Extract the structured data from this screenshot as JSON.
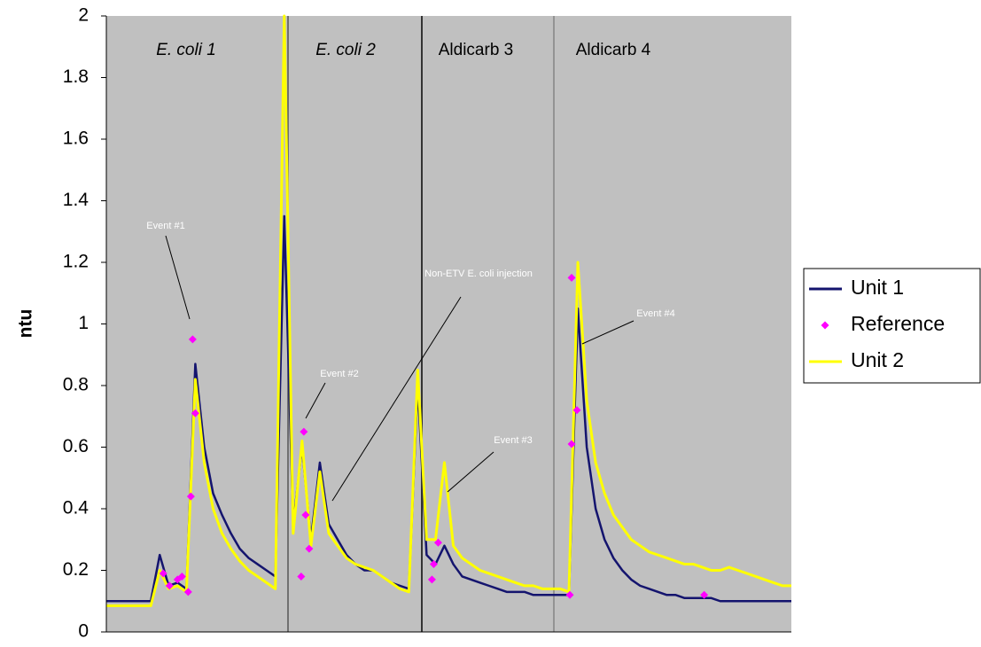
{
  "chart_data": {
    "type": "line",
    "y_label": "ntu",
    "xlim": [
      0,
      77
    ],
    "ylim": [
      0,
      2
    ],
    "yticks": [
      0,
      0.2,
      0.4,
      0.6,
      0.8,
      1,
      1.2,
      1.4,
      1.6,
      1.8,
      2
    ],
    "sections": [
      "E. coli 1",
      "E. coli 2",
      "Aldicarb 3",
      "Aldicarb 4"
    ],
    "annotations": [
      "Event #1",
      "Event #2",
      "Non-ETV E. coli injection",
      "Event #3",
      "Event #4"
    ],
    "series": [
      {
        "name": "Unit 1",
        "type": "line",
        "color": "#14146e",
        "values": [
          0.1,
          0.1,
          0.1,
          0.1,
          0.1,
          0.1,
          0.25,
          0.15,
          0.16,
          0.14,
          0.87,
          0.6,
          0.45,
          0.38,
          0.32,
          0.27,
          0.24,
          0.22,
          0.2,
          0.18,
          1.35,
          0.35,
          0.6,
          0.3,
          0.55,
          0.35,
          0.3,
          0.25,
          0.22,
          0.2,
          0.2,
          0.18,
          0.16,
          0.15,
          0.14,
          0.8,
          0.25,
          0.22,
          0.28,
          0.22,
          0.18,
          0.17,
          0.16,
          0.15,
          0.14,
          0.13,
          0.13,
          0.13,
          0.12,
          0.12,
          0.12,
          0.12,
          0.12,
          1.05,
          0.6,
          0.4,
          0.3,
          0.24,
          0.2,
          0.17,
          0.15,
          0.14,
          0.13,
          0.12,
          0.12,
          0.11,
          0.11,
          0.11,
          0.11,
          0.1,
          0.1,
          0.1,
          0.1,
          0.1,
          0.1,
          0.1,
          0.1,
          0.1
        ]
      },
      {
        "name": "Reference",
        "type": "scatter",
        "color": "#ff00ff",
        "x": [
          6.4,
          7.1,
          8.0,
          8.5,
          9.2,
          9.5,
          9.7,
          10.0,
          21.9,
          22.2,
          22.4,
          22.8,
          36.6,
          36.8,
          37.3,
          52.3,
          52.3,
          52.9,
          52.1,
          67.2
        ],
        "values": [
          0.19,
          0.15,
          0.17,
          0.18,
          0.13,
          0.44,
          0.95,
          0.71,
          0.18,
          0.65,
          0.38,
          0.27,
          0.17,
          0.22,
          0.29,
          1.15,
          0.61,
          0.72,
          0.12,
          0.12
        ]
      },
      {
        "name": "Unit 2",
        "type": "line",
        "color": "#ffff00",
        "values": [
          0.085,
          0.085,
          0.085,
          0.085,
          0.085,
          0.085,
          0.2,
          0.14,
          0.15,
          0.13,
          0.82,
          0.55,
          0.4,
          0.32,
          0.27,
          0.23,
          0.2,
          0.18,
          0.16,
          0.14,
          2,
          0.32,
          0.62,
          0.28,
          0.52,
          0.32,
          0.28,
          0.24,
          0.22,
          0.21,
          0.2,
          0.18,
          0.16,
          0.14,
          0.13,
          0.85,
          0.3,
          0.3,
          0.55,
          0.28,
          0.24,
          0.22,
          0.2,
          0.19,
          0.18,
          0.17,
          0.16,
          0.15,
          0.15,
          0.14,
          0.14,
          0.14,
          0.13,
          1.2,
          0.75,
          0.55,
          0.45,
          0.38,
          0.34,
          0.3,
          0.28,
          0.26,
          0.25,
          0.24,
          0.23,
          0.22,
          0.22,
          0.21,
          0.2,
          0.2,
          0.21,
          0.2,
          0.19,
          0.18,
          0.17,
          0.16,
          0.15,
          0.15
        ]
      }
    ]
  }
}
